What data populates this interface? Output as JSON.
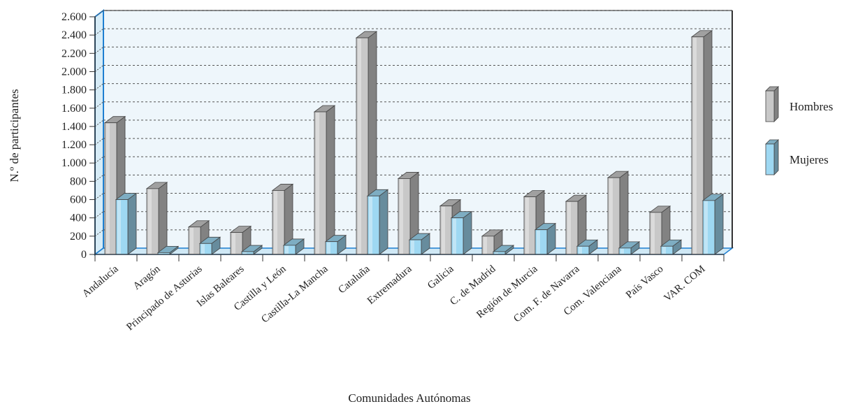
{
  "chart_data": {
    "type": "bar",
    "title": "",
    "xlabel": "Comunidades Autónomas",
    "ylabel": "N.º de participantes",
    "ylim": [
      0,
      2600
    ],
    "yticks": [
      0,
      200,
      400,
      600,
      800,
      1000,
      1200,
      1400,
      1600,
      1800,
      2000,
      2200,
      2400,
      2600
    ],
    "ytick_labels": [
      "0",
      "200",
      "400",
      "600",
      "800",
      "1.000",
      "1.200",
      "1.400",
      "1.600",
      "1.800",
      "2.000",
      "2.200",
      "2.400",
      "2.600"
    ],
    "grid": true,
    "legend_position": "right",
    "categories": [
      "Andalucía",
      "Aragón",
      "Principado de Asturias",
      "Islas Baleares",
      "Castilla y León",
      "Castilla-La Mancha",
      "Cataluña",
      "Extremadura",
      "Galicia",
      "C. de Madrid",
      "Región de Murcia",
      "Com. F. de Navarra",
      "Com. Valenciana",
      "País Vasco",
      "VAR. COM"
    ],
    "series": [
      {
        "name": "Hombres",
        "color": "#c8c8c8",
        "values": [
          1440,
          720,
          300,
          240,
          700,
          1560,
          2370,
          830,
          530,
          200,
          630,
          580,
          840,
          460,
          2380
        ]
      },
      {
        "name": "Mujeres",
        "color": "#9ed8f2",
        "values": [
          600,
          20,
          120,
          30,
          100,
          140,
          640,
          160,
          400,
          30,
          270,
          90,
          70,
          90,
          590
        ]
      }
    ]
  },
  "colors": {
    "plot_background": "#eef6fb",
    "grid_line": "#555555",
    "men_bar": "#c8c8c8",
    "women_bar": "#9ed8f2",
    "accent_blue": "#1e7fd1"
  }
}
